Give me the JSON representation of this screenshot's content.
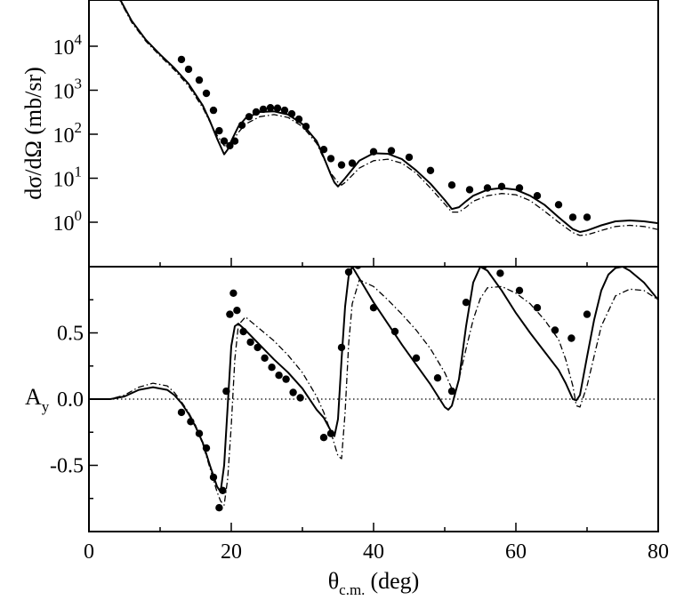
{
  "chart_data": [
    {
      "panel": "cross-section",
      "type": "line",
      "xlim": [
        0,
        80
      ],
      "yscale": "log",
      "ylim_log10": [
        -1.0,
        2.5
      ],
      "ylabel": "dσ/dΩ (mb/sr)",
      "y_ticks": [
        {
          "mantissa": "10",
          "exponent": "4",
          "value": 10000
        },
        {
          "mantissa": "10",
          "exponent": "3",
          "value": 1000
        },
        {
          "mantissa": "10",
          "exponent": "2",
          "value": 100
        },
        {
          "mantissa": "10",
          "exponent": "1",
          "value": 10
        },
        {
          "mantissa": "10",
          "exponent": "0",
          "value": 1
        }
      ],
      "series": [
        {
          "style": "solid",
          "x": [
            4,
            6,
            8,
            10,
            12,
            14,
            16,
            17,
            18,
            19,
            19.5,
            20,
            21,
            22,
            24,
            26,
            28,
            30,
            32,
            33,
            34,
            34.5,
            35,
            36,
            38,
            40,
            42,
            44,
            46,
            48,
            50,
            51,
            52,
            53,
            54,
            56,
            58,
            60,
            62,
            64,
            66,
            68,
            69,
            70,
            72,
            74,
            76,
            78,
            80
          ],
          "y": [
            150000,
            38000,
            14000,
            6500,
            3200,
            1400,
            450,
            200,
            80,
            35,
            45,
            70,
            150,
            230,
            320,
            330,
            280,
            170,
            70,
            30,
            12,
            8,
            6.5,
            10,
            25,
            37,
            36,
            27,
            15,
            7.5,
            3.2,
            2,
            2.2,
            3,
            4,
            5.5,
            6,
            5.5,
            4,
            2.5,
            1.3,
            0.7,
            0.6,
            0.65,
            0.85,
            1.05,
            1.1,
            1.05,
            0.95
          ]
        },
        {
          "style": "dash-dot",
          "x": [
            4,
            6,
            8,
            10,
            12,
            14,
            16,
            17,
            18,
            19,
            19.5,
            20,
            21,
            22,
            24,
            26,
            28,
            30,
            32,
            33,
            34,
            35,
            35.5,
            36,
            38,
            40,
            42,
            44,
            46,
            48,
            50,
            51,
            52,
            53,
            54,
            56,
            58,
            60,
            62,
            64,
            66,
            68,
            69,
            70,
            72,
            74,
            76,
            78,
            80
          ],
          "y": [
            140000,
            35000,
            13000,
            6000,
            2900,
            1250,
            400,
            190,
            95,
            55,
            55,
            65,
            110,
            170,
            250,
            280,
            240,
            150,
            62,
            28,
            13,
            8,
            7,
            8,
            17,
            25,
            27,
            22,
            13,
            6,
            2.6,
            1.7,
            1.7,
            2.2,
            3,
            4,
            4.5,
            4.2,
            3.1,
            1.8,
            1,
            0.58,
            0.5,
            0.52,
            0.65,
            0.8,
            0.85,
            0.8,
            0.68
          ]
        },
        {
          "style": "points",
          "x": [
            13,
            14,
            15.5,
            16.5,
            17.5,
            18.3,
            19,
            19.8,
            20.5,
            21.5,
            22.5,
            23.5,
            24.5,
            25.5,
            26.5,
            27.5,
            28.5,
            29.5,
            30.5,
            33,
            34,
            35.5,
            37,
            40,
            42.5,
            45,
            48,
            51,
            53.5,
            56,
            58,
            60.5,
            63,
            66,
            68,
            70
          ],
          "y": [
            5000,
            3000,
            1700,
            850,
            350,
            120,
            70,
            55,
            70,
            160,
            250,
            320,
            370,
            400,
            390,
            350,
            290,
            220,
            150,
            45,
            28,
            20,
            22,
            40,
            42,
            30,
            15,
            7,
            5.5,
            6,
            6.5,
            6,
            4,
            2.5,
            1.3,
            1.3
          ]
        }
      ]
    },
    {
      "panel": "analyzing-power",
      "type": "line",
      "xlim": [
        0,
        80
      ],
      "ylim": [
        -1.0,
        1.0
      ],
      "xlabel": "θ",
      "xlabel_sub": "c.m.",
      "xlabel_unit": "(deg)",
      "ylabel": "A",
      "ylabel_sub": "y",
      "x_ticks": [
        "0",
        "20",
        "40",
        "60",
        "80"
      ],
      "y_ticks": [
        "0.5",
        "0.0",
        "-0.5"
      ],
      "y_tick_values": [
        0.5,
        0.0,
        -0.5
      ],
      "reference_line": 0.0,
      "series": [
        {
          "style": "solid",
          "x": [
            0,
            3,
            5,
            7,
            9,
            11,
            12,
            13,
            14,
            15,
            16,
            17,
            18,
            18.5,
            19,
            19.5,
            20,
            20.5,
            21,
            22,
            24,
            26,
            28,
            30,
            32,
            33,
            34,
            34.5,
            35,
            35.5,
            36,
            36.5,
            37,
            38,
            40,
            42,
            44,
            46,
            48,
            50,
            50.5,
            51,
            52,
            53,
            54,
            55,
            56,
            58,
            60,
            62,
            64,
            66,
            67,
            68,
            68.5,
            69,
            70,
            71,
            72,
            73,
            74,
            75,
            76,
            78,
            80
          ],
          "y": [
            0.0,
            0.0,
            0.02,
            0.07,
            0.09,
            0.07,
            0.03,
            -0.03,
            -0.11,
            -0.21,
            -0.33,
            -0.5,
            -0.66,
            -0.7,
            -0.5,
            -0.05,
            0.4,
            0.55,
            0.57,
            0.52,
            0.41,
            0.3,
            0.2,
            0.08,
            -0.08,
            -0.14,
            -0.24,
            -0.28,
            -0.15,
            0.3,
            0.7,
            0.93,
            1.0,
            0.91,
            0.73,
            0.57,
            0.41,
            0.26,
            0.11,
            -0.06,
            -0.08,
            -0.05,
            0.15,
            0.55,
            0.88,
            1.0,
            0.97,
            0.82,
            0.65,
            0.5,
            0.36,
            0.22,
            0.12,
            0.0,
            -0.01,
            0.03,
            0.32,
            0.6,
            0.82,
            0.94,
            0.99,
            1.0,
            0.97,
            0.88,
            0.75
          ]
        },
        {
          "style": "dash-dot",
          "x": [
            0,
            3,
            5,
            7,
            9,
            11,
            12,
            13,
            14,
            15,
            16,
            17,
            18,
            18.5,
            19,
            19.5,
            20,
            20.5,
            21,
            22,
            24,
            26,
            28,
            30,
            32,
            33,
            34,
            35,
            35.5,
            36,
            36.5,
            37,
            38,
            40,
            42,
            44,
            46,
            48,
            50,
            51,
            51.5,
            52,
            53,
            54,
            55,
            56,
            58,
            60,
            62,
            64,
            66,
            67,
            68,
            68.5,
            69,
            70,
            72,
            74,
            76,
            78,
            80
          ],
          "y": [
            0.0,
            0.0,
            0.03,
            0.09,
            0.12,
            0.1,
            0.05,
            -0.02,
            -0.1,
            -0.2,
            -0.34,
            -0.52,
            -0.7,
            -0.77,
            -0.8,
            -0.6,
            -0.2,
            0.3,
            0.56,
            0.62,
            0.53,
            0.44,
            0.33,
            0.2,
            0.02,
            -0.1,
            -0.25,
            -0.43,
            -0.45,
            -0.1,
            0.42,
            0.72,
            0.9,
            0.85,
            0.75,
            0.64,
            0.52,
            0.38,
            0.2,
            0.08,
            0.05,
            0.15,
            0.38,
            0.6,
            0.76,
            0.84,
            0.85,
            0.8,
            0.72,
            0.6,
            0.45,
            0.3,
            0.1,
            -0.05,
            -0.06,
            0.1,
            0.55,
            0.78,
            0.83,
            0.82,
            0.75
          ]
        },
        {
          "style": "points",
          "x": [
            13,
            14.3,
            15.5,
            16.5,
            17.5,
            18.3,
            18.8,
            19.3,
            19.8,
            20.3,
            20.8,
            21.7,
            22.7,
            23.7,
            24.7,
            25.7,
            26.7,
            27.7,
            28.7,
            29.7,
            33,
            34,
            35.5,
            36.5,
            37.8,
            40,
            43,
            46,
            49,
            51,
            53,
            55.5,
            57.8,
            60.5,
            63,
            65.5,
            67.8,
            70
          ],
          "y": [
            -0.1,
            -0.17,
            -0.26,
            -0.37,
            -0.59,
            -0.82,
            -0.69,
            0.06,
            0.64,
            0.8,
            0.67,
            0.51,
            0.43,
            0.39,
            0.31,
            0.24,
            0.18,
            0.15,
            0.05,
            0.01,
            -0.29,
            -0.26,
            0.39,
            0.96,
            1.01,
            0.69,
            0.51,
            0.31,
            0.16,
            0.06,
            0.73,
            1.01,
            0.95,
            0.82,
            0.69,
            0.52,
            0.46,
            0.64
          ]
        }
      ]
    }
  ]
}
